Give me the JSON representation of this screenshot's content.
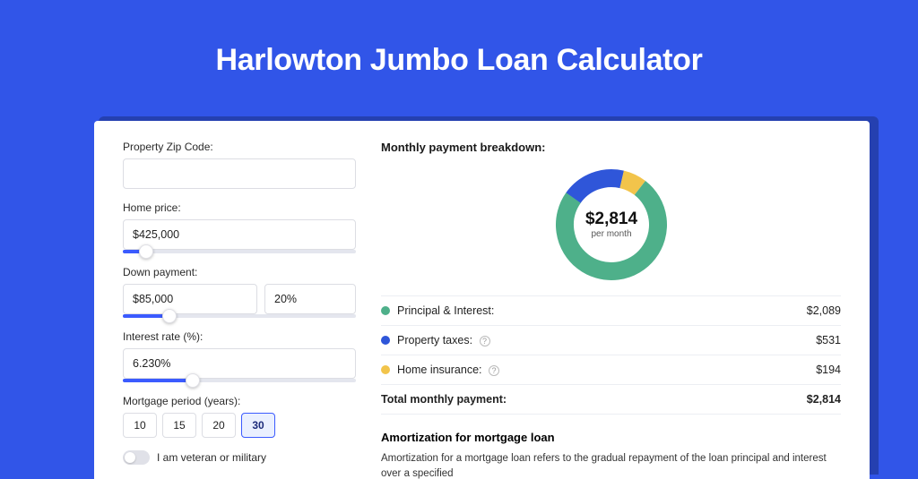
{
  "hero": {
    "title": "Harlowton Jumbo Loan Calculator"
  },
  "colors": {
    "page_bg": "#3155e8",
    "shadow_bg": "#2540b0",
    "card_bg": "#ffffff",
    "slider_fill": "#3b5bff",
    "slider_track": "#e4e6ee",
    "border": "#dcdde3"
  },
  "form": {
    "zip": {
      "label": "Property Zip Code:",
      "value": ""
    },
    "home_price": {
      "label": "Home price:",
      "value": "$425,000",
      "slider_pct": 10
    },
    "down_payment": {
      "label": "Down payment:",
      "amount": "$85,000",
      "percent": "20%",
      "slider_pct": 20
    },
    "interest": {
      "label": "Interest rate (%):",
      "value": "6.230%",
      "slider_pct": 30
    },
    "period": {
      "label": "Mortgage period (years):",
      "options": [
        "10",
        "15",
        "20",
        "30"
      ],
      "selected": "30"
    },
    "veteran": {
      "label": "I am veteran or military",
      "on": false
    }
  },
  "breakdown": {
    "title": "Monthly payment breakdown:",
    "donut": {
      "center_value": "$2,814",
      "center_sub": "per month",
      "slices": [
        {
          "name": "principal_interest",
          "value": 2089,
          "color": "#4eb08a"
        },
        {
          "name": "property_taxes",
          "value": 531,
          "color": "#2f56d9"
        },
        {
          "name": "home_insurance",
          "value": 194,
          "color": "#f2c44b"
        }
      ],
      "ring_bg": "#ffffff",
      "thickness": 20,
      "radius": 52
    },
    "rows": [
      {
        "dot": "#4eb08a",
        "label": "Principal & Interest:",
        "value": "$2,089",
        "info": false
      },
      {
        "dot": "#2f56d9",
        "label": "Property taxes:",
        "value": "$531",
        "info": true
      },
      {
        "dot": "#f2c44b",
        "label": "Home insurance:",
        "value": "$194",
        "info": true
      }
    ],
    "total": {
      "label": "Total monthly payment:",
      "value": "$2,814"
    }
  },
  "amortization": {
    "title": "Amortization for mortgage loan",
    "text": "Amortization for a mortgage loan refers to the gradual repayment of the loan principal and interest over a specified"
  }
}
